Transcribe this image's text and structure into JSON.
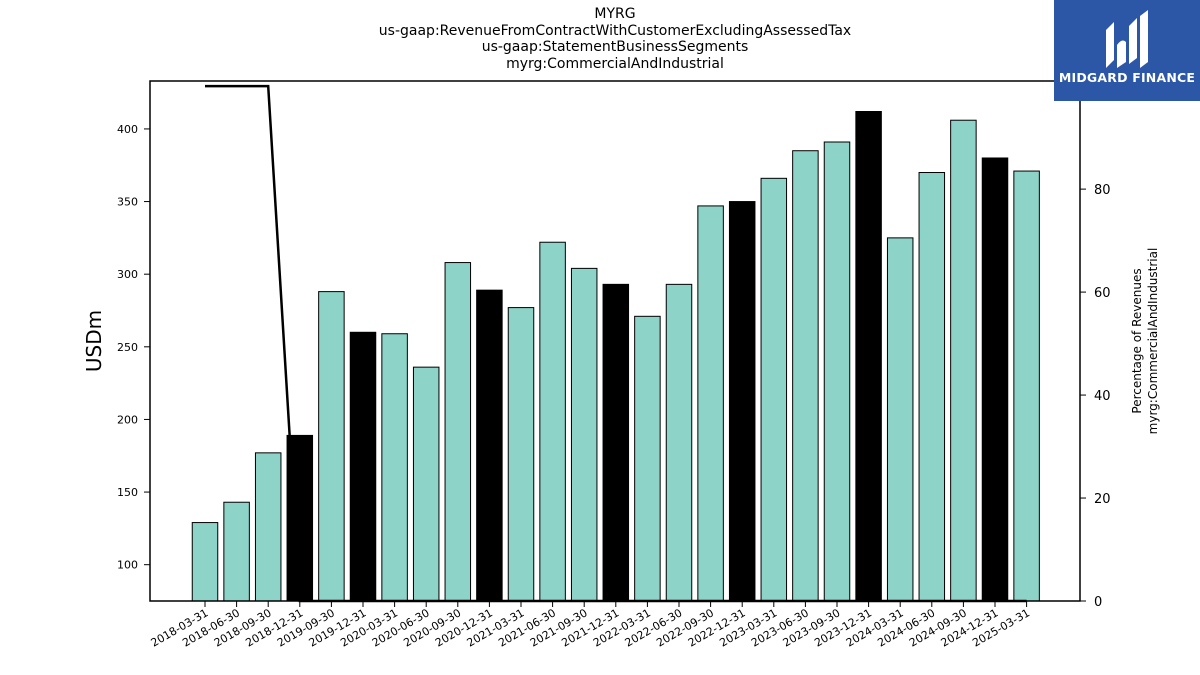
{
  "title_lines": [
    "MYRG",
    "us-gaap:RevenueFromContractWithCustomerExcludingAssessedTax",
    "us-gaap:StatementBusinessSegments",
    "myrg:CommercialAndIndustrial"
  ],
  "logo": {
    "text": "MIDGARD FINANCE",
    "color": "#2b57a6"
  },
  "chart_data": {
    "type": "bar",
    "categories": [
      "2018-03-31",
      "2018-06-30",
      "2018-09-30",
      "2018-12-31",
      "2019-09-30",
      "2019-12-31",
      "2020-03-31",
      "2020-06-30",
      "2020-09-30",
      "2020-12-31",
      "2021-03-31",
      "2021-06-30",
      "2021-09-30",
      "2021-12-31",
      "2022-03-31",
      "2022-06-30",
      "2022-09-30",
      "2022-12-31",
      "2023-03-31",
      "2023-06-30",
      "2023-09-30",
      "2023-12-31",
      "2024-03-31",
      "2024-06-30",
      "2024-09-30",
      "2024-12-31",
      "2025-03-31"
    ],
    "values": [
      129,
      143,
      177,
      189,
      288,
      260,
      259,
      236,
      308,
      289,
      277,
      322,
      304,
      293,
      271,
      293,
      347,
      350,
      366,
      385,
      391,
      412,
      325,
      370,
      406,
      380,
      371
    ],
    "highlight": [
      false,
      false,
      false,
      true,
      false,
      true,
      false,
      false,
      false,
      true,
      false,
      false,
      false,
      true,
      false,
      false,
      false,
      true,
      false,
      false,
      false,
      true,
      false,
      false,
      false,
      true,
      false
    ],
    "bar_color": "#8dd3c7",
    "highlight_color": "#000000",
    "ylabel": "USDm",
    "ylim": [
      75,
      433
    ],
    "yticks": [
      100,
      150,
      200,
      250,
      300,
      350,
      400
    ],
    "secondary": {
      "ylabel_lines": [
        "Percentage of Revenues",
        "myrg:CommercialAndIndustrial"
      ],
      "ylim": [
        0,
        101
      ],
      "yticks": [
        0,
        20,
        40,
        60,
        80,
        100
      ],
      "line_values": [
        100,
        100,
        100,
        0,
        0,
        0,
        0,
        0,
        0,
        0,
        0,
        0,
        0,
        0,
        0,
        0,
        0,
        0,
        0,
        0,
        0,
        0,
        0,
        0,
        0,
        0,
        0
      ],
      "line_color": "#000000"
    },
    "grid": false
  }
}
